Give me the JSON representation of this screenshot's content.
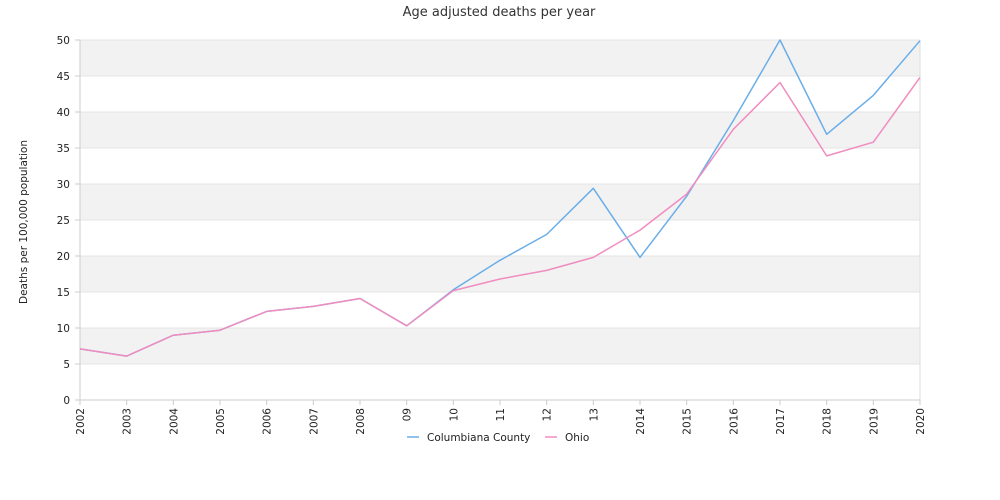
{
  "chart_data": {
    "type": "line",
    "title": "Age adjusted deaths per year",
    "ylabel": "Deaths per 100,000 population",
    "xlabel": "",
    "x": [
      "2002",
      "2003",
      "2004",
      "2005",
      "2006",
      "2007",
      "2008",
      "09",
      "10",
      "11",
      "12",
      "13",
      "2014",
      "2015",
      "2016",
      "2017",
      "2018",
      "2019",
      "2020"
    ],
    "ylim": [
      0,
      50
    ],
    "yticks": [
      0,
      5,
      10,
      15,
      20,
      25,
      30,
      35,
      40,
      45,
      50
    ],
    "grid": "horizontal alternating bands",
    "legend_position": "bottom-center",
    "series": [
      {
        "name": "Columbiana County",
        "color": "#6aaee8",
        "values": [
          7.1,
          6.1,
          9.0,
          9.7,
          12.3,
          13.0,
          14.1,
          10.3,
          15.3,
          19.4,
          23.0,
          29.4,
          19.8,
          28.3,
          38.8,
          50.0,
          36.9,
          42.3,
          49.9
        ]
      },
      {
        "name": "Ohio",
        "color": "#f08cbf",
        "values": [
          7.1,
          6.1,
          9.0,
          9.7,
          12.3,
          13.0,
          14.1,
          10.3,
          15.2,
          16.8,
          18.0,
          19.8,
          23.6,
          28.6,
          37.6,
          44.1,
          33.9,
          35.8,
          44.8
        ]
      }
    ]
  }
}
